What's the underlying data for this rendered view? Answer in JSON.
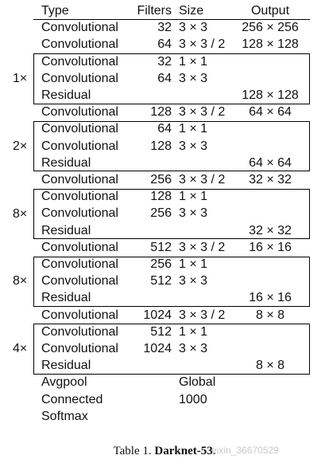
{
  "headers": {
    "type": "Type",
    "filters": "Filters",
    "size": "Size",
    "output": "Output"
  },
  "rows": [
    {
      "type": "Convolutional",
      "filters": "32",
      "size": "3 × 3",
      "output": "256 × 256"
    },
    {
      "type": "Convolutional",
      "filters": "64",
      "size": "3 × 3 / 2",
      "output": "128 × 128"
    },
    {
      "type": "Convolutional",
      "filters": "32",
      "size": "1 × 1",
      "output": ""
    },
    {
      "type": "Convolutional",
      "filters": "64",
      "size": "3 × 3",
      "output": ""
    },
    {
      "type": "Residual",
      "filters": "",
      "size": "",
      "output": "128 × 128"
    },
    {
      "type": "Convolutional",
      "filters": "128",
      "size": "3 × 3 / 2",
      "output": "64 × 64"
    },
    {
      "type": "Convolutional",
      "filters": "64",
      "size": "1 × 1",
      "output": ""
    },
    {
      "type": "Convolutional",
      "filters": "128",
      "size": "3 × 3",
      "output": ""
    },
    {
      "type": "Residual",
      "filters": "",
      "size": "",
      "output": "64 × 64"
    },
    {
      "type": "Convolutional",
      "filters": "256",
      "size": "3 × 3 / 2",
      "output": "32 × 32"
    },
    {
      "type": "Convolutional",
      "filters": "128",
      "size": "1 × 1",
      "output": ""
    },
    {
      "type": "Convolutional",
      "filters": "256",
      "size": "3 × 3",
      "output": ""
    },
    {
      "type": "Residual",
      "filters": "",
      "size": "",
      "output": "32 × 32"
    },
    {
      "type": "Convolutional",
      "filters": "512",
      "size": "3 × 3 / 2",
      "output": "16 × 16"
    },
    {
      "type": "Convolutional",
      "filters": "256",
      "size": "1 × 1",
      "output": ""
    },
    {
      "type": "Convolutional",
      "filters": "512",
      "size": "3 × 3",
      "output": ""
    },
    {
      "type": "Residual",
      "filters": "",
      "size": "",
      "output": "16 × 16"
    },
    {
      "type": "Convolutional",
      "filters": "1024",
      "size": "3 × 3 / 2",
      "output": "8 × 8"
    },
    {
      "type": "Convolutional",
      "filters": "512",
      "size": "1 × 1",
      "output": ""
    },
    {
      "type": "Convolutional",
      "filters": "1024",
      "size": "3 × 3",
      "output": ""
    },
    {
      "type": "Residual",
      "filters": "",
      "size": "",
      "output": "8 × 8"
    },
    {
      "type": "Avgpool",
      "filters": "",
      "size": "Global",
      "output": ""
    },
    {
      "type": "Connected",
      "filters": "",
      "size": "1000",
      "output": ""
    },
    {
      "type": "Softmax",
      "filters": "",
      "size": "",
      "output": ""
    }
  ],
  "blocks": [
    {
      "multiplier": "1×",
      "first_row": 2,
      "row_count": 3
    },
    {
      "multiplier": "2×",
      "first_row": 6,
      "row_count": 3
    },
    {
      "multiplier": "8×",
      "first_row": 10,
      "row_count": 3
    },
    {
      "multiplier": "8×",
      "first_row": 14,
      "row_count": 3
    },
    {
      "multiplier": "4×",
      "first_row": 18,
      "row_count": 3
    }
  ],
  "caption": {
    "prefix": "Table 1. ",
    "title": "Darknet-53."
  },
  "watermark": "eixin_36670529"
}
